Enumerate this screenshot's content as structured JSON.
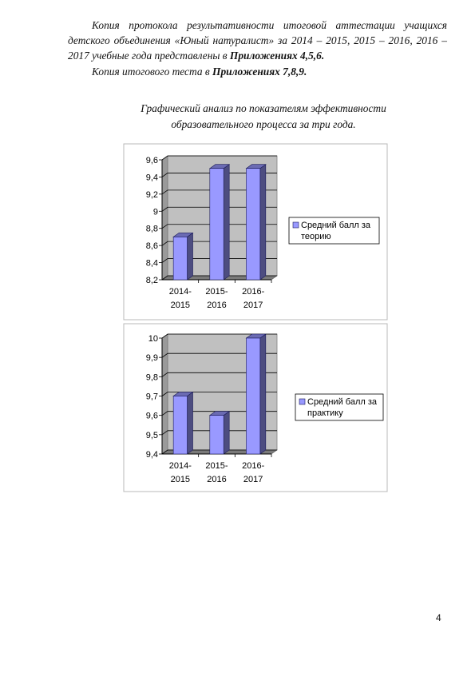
{
  "paragraph1": {
    "text": "Копия протокола результативности итоговой аттестации учащихся детского объединения «Юный натуралист» за 2014 – 2015, 2015 – 2016, 2016 – 2017 учебные года представлены в ",
    "bold": "Приложениях 4,5,6."
  },
  "paragraph2": {
    "text": "Копия итогового теста в ",
    "bold": "Приложениях 7,8,9."
  },
  "caption": {
    "line1": "Графический анализ по показателям эффективности",
    "line2": "образовательного процесса за три года."
  },
  "chart_data": [
    {
      "type": "bar",
      "categories": [
        "2014-2015",
        "2015-2016",
        "2016-2017"
      ],
      "category_lines": [
        [
          "2014-",
          "2015"
        ],
        [
          "2015-",
          "2016"
        ],
        [
          "2016-",
          "2017"
        ]
      ],
      "series": [
        {
          "name": "Средний балл за теорию",
          "values": [
            8.7,
            9.5,
            9.5
          ]
        }
      ],
      "legend_lines": [
        "Средний балл за",
        "теорию"
      ],
      "ylim": [
        8.2,
        9.6
      ],
      "yticks": [
        "8,2",
        "8,4",
        "8,6",
        "8,8",
        "9",
        "9,2",
        "9,4",
        "9,6"
      ],
      "ytick_values": [
        8.2,
        8.4,
        8.6,
        8.8,
        9.0,
        9.2,
        9.4,
        9.6
      ],
      "grid": true,
      "legend": "right",
      "bar_color": "#9999ff",
      "wall_color": "#c0c0c0"
    },
    {
      "type": "bar",
      "categories": [
        "2014-2015",
        "2015-2016",
        "2016-2017"
      ],
      "category_lines": [
        [
          "2014-",
          "2015"
        ],
        [
          "2015-",
          "2016"
        ],
        [
          "2016-",
          "2017"
        ]
      ],
      "series": [
        {
          "name": "Средний балл за практику",
          "values": [
            9.7,
            9.6,
            10.0
          ]
        }
      ],
      "legend_lines": [
        "Средний балл за",
        "практику"
      ],
      "ylim": [
        9.4,
        10.0
      ],
      "yticks": [
        "9,4",
        "9,5",
        "9,6",
        "9,7",
        "9,8",
        "9,9",
        "10"
      ],
      "ytick_values": [
        9.4,
        9.5,
        9.6,
        9.7,
        9.8,
        9.9,
        10.0
      ],
      "grid": true,
      "legend": "right",
      "bar_color": "#9999ff",
      "wall_color": "#c0c0c0"
    }
  ],
  "page_number": "4"
}
